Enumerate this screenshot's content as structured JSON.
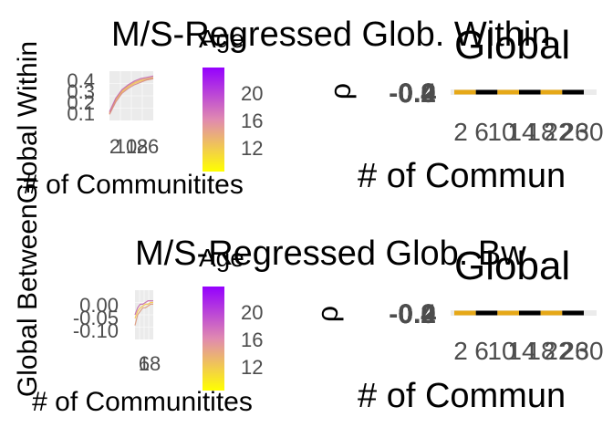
{
  "figure": {
    "shared_ylabel": "Global BetweenGlobal Within"
  },
  "chart_data": [
    {
      "panel": "top-left",
      "type": "line",
      "title": "M/S-Regressed Glob. Within",
      "xlabel": "# of Communitites",
      "ylabel": "",
      "ytick_labels": [
        "0.4",
        "0.3",
        "0.2",
        "0.1"
      ],
      "xtick_labels": [
        "2",
        "6",
        "10",
        "14",
        "18",
        "22",
        "26",
        "30"
      ],
      "ylim": [
        0.06,
        0.46
      ],
      "x": [
        2,
        6,
        10,
        14,
        18,
        22,
        26,
        30
      ],
      "series": [
        {
          "values": [
            0.11,
            0.22,
            0.29,
            0.33,
            0.36,
            0.38,
            0.39,
            0.4
          ]
        },
        {
          "values": [
            0.12,
            0.23,
            0.3,
            0.34,
            0.37,
            0.39,
            0.4,
            0.41
          ]
        },
        {
          "values": [
            0.11,
            0.21,
            0.28,
            0.32,
            0.35,
            0.37,
            0.39,
            0.4
          ]
        },
        {
          "values": [
            0.13,
            0.24,
            0.31,
            0.35,
            0.38,
            0.4,
            0.41,
            0.42
          ]
        }
      ],
      "grid": true,
      "colorbar": {
        "title": "Age",
        "tick_labels": [
          "20",
          "16",
          "12"
        ],
        "range": [
          10,
          24
        ]
      }
    },
    {
      "panel": "top-right",
      "type": "line",
      "title": "Global",
      "xlabel": "# of Commun",
      "ylabel": "ρ",
      "ytick_labels": [
        "-0.4",
        "-0.2",
        "0.0",
        "0.2",
        "0.4"
      ],
      "xtick_labels": [
        "2",
        "6",
        "10",
        "14",
        "18",
        "22",
        "26",
        "30"
      ]
    },
    {
      "panel": "bottom-left",
      "type": "line",
      "title": "M/S-Regressed Glob. Bw",
      "xlabel": "# of Communitites",
      "ylabel": "",
      "ytick_labels": [
        "0.00",
        "-0.05",
        "-0.10"
      ],
      "xtick_labels": [
        "2",
        "6",
        "10",
        "14",
        "18",
        "22",
        "26",
        "30"
      ],
      "ylim": [
        -0.12,
        0.02
      ],
      "x": [
        2,
        6,
        10,
        14,
        18,
        22,
        26,
        30
      ],
      "series": [
        {
          "values": [
            -0.06,
            -0.04,
            -0.03,
            -0.025,
            -0.02,
            -0.02,
            -0.015,
            -0.015
          ]
        },
        {
          "values": [
            -0.08,
            -0.05,
            -0.04,
            -0.03,
            -0.03,
            -0.025,
            -0.02,
            -0.02
          ]
        },
        {
          "values": [
            -0.05,
            -0.03,
            -0.02,
            -0.02,
            -0.015,
            -0.01,
            -0.01,
            -0.01
          ]
        }
      ],
      "grid": true,
      "colorbar": {
        "title": "Age",
        "tick_labels": [
          "20",
          "16",
          "12"
        ],
        "range": [
          10,
          24
        ]
      }
    },
    {
      "panel": "bottom-right",
      "type": "line",
      "title": "Global",
      "xlabel": "# of Commun",
      "ylabel": "ρ",
      "ytick_labels": [
        "-0.4",
        "-0.2",
        "0.0",
        "0.2",
        "0.4"
      ],
      "xtick_labels": [
        "2",
        "6",
        "10",
        "14",
        "18",
        "22",
        "26",
        "30"
      ]
    }
  ],
  "colors": {
    "panel_bg": "#ebebeb",
    "grid": "#ffffff",
    "line_low_age": "#f5c542",
    "line_high_age": "#a020f0",
    "rho_line_gold": "#e6a817",
    "rho_line_black": "#000000",
    "colorbar_top": "#9400ff",
    "colorbar_mid": "#e08ab0",
    "colorbar_bottom": "#ffff00"
  }
}
